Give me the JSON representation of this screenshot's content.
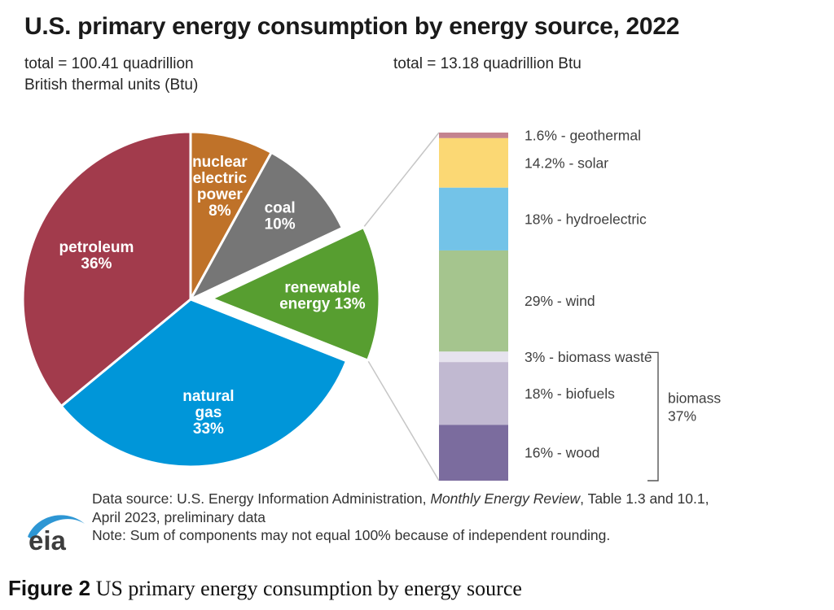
{
  "header": {
    "title": "U.S. primary energy consumption by energy source, 2022",
    "total_left_line1": "total = 100.41 quadrillion",
    "total_left_line2": "British thermal units (Btu)",
    "total_right": "total = 13.18 quadrillion Btu"
  },
  "chart_data": {
    "type": "pie",
    "title": "U.S. primary energy consumption by energy source, 2022",
    "pie": {
      "total_label": "total = 100.41 quadrillion British thermal units (Btu)",
      "total_value_quadrillion_btu": 100.41,
      "slices": [
        {
          "name": "nuclear electric power",
          "pct": 8,
          "color": "#bf7229",
          "label_lines": [
            "nuclear",
            "electric",
            "power",
            "8%"
          ]
        },
        {
          "name": "coal",
          "pct": 10,
          "color": "#767676",
          "label_lines": [
            "coal",
            "10%"
          ]
        },
        {
          "name": "renewable energy",
          "pct": 13,
          "color": "#579e30",
          "exploded": true,
          "label_lines": [
            "renewable",
            "energy 13%"
          ]
        },
        {
          "name": "natural gas",
          "pct": 33,
          "color": "#0096d9",
          "label_lines": [
            "natural",
            "gas",
            "33%"
          ]
        },
        {
          "name": "petroleum",
          "pct": 36,
          "color": "#a23b4c",
          "label_lines": [
            "petroleum",
            "36%"
          ]
        }
      ]
    },
    "bar": {
      "total_label": "total = 13.18 quadrillion Btu",
      "total_value_quadrillion_btu": 13.18,
      "segments": [
        {
          "name": "geothermal",
          "pct": 1.6,
          "color": "#c4838f"
        },
        {
          "name": "solar",
          "pct": 14.2,
          "color": "#fbd874"
        },
        {
          "name": "hydroelectric",
          "pct": 18,
          "color": "#73c3e8"
        },
        {
          "name": "wind",
          "pct": 29,
          "color": "#a5c58e"
        },
        {
          "name": "biomass waste",
          "pct": 3,
          "color": "#e6e3ee",
          "group": "biomass"
        },
        {
          "name": "biofuels",
          "pct": 18,
          "color": "#c1b9d1",
          "group": "biomass"
        },
        {
          "name": "wood",
          "pct": 16,
          "color": "#7b6c9e",
          "group": "biomass"
        }
      ],
      "group_label": {
        "name": "biomass",
        "pct": "37%"
      }
    }
  },
  "footer": {
    "logo_text": "eia",
    "source_prefix": "Data source: U.S. Energy Information Administration, ",
    "source_italic": "Monthly Energy Review",
    "source_suffix": ", Table 1.3 and 10.1,",
    "source_line2": "April 2023, preliminary data",
    "note": "Note: Sum of components may not equal 100% because of independent rounding."
  },
  "caption": {
    "label": "Figure 2",
    "text": " US primary energy consumption by energy source"
  },
  "colors": {
    "logo_blue": "#2d96d4",
    "connector_line": "#c6c6c6",
    "bar_label_text": "#3f3f3f",
    "pie_label_text": "#ffffff"
  }
}
